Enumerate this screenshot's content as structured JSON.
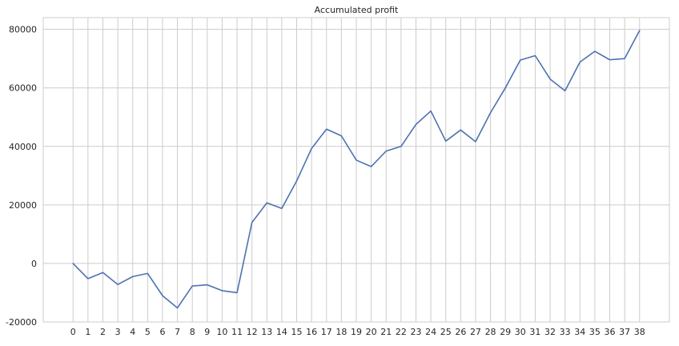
{
  "chart_data": {
    "type": "line",
    "title": "Accumulated profit",
    "xlabel": "",
    "ylabel": "",
    "x": [
      0,
      1,
      2,
      3,
      4,
      5,
      6,
      7,
      8,
      9,
      10,
      11,
      12,
      13,
      14,
      15,
      16,
      17,
      18,
      19,
      20,
      21,
      22,
      23,
      24,
      25,
      26,
      27,
      28,
      29,
      30,
      31,
      32,
      33,
      34,
      35,
      36,
      37,
      38
    ],
    "series": [
      {
        "name": "",
        "values": [
          0,
          -5200,
          -3100,
          -7200,
          -4500,
          -3400,
          -11000,
          -15200,
          -7700,
          -7300,
          -9300,
          -10000,
          14000,
          20700,
          18800,
          28200,
          39300,
          45900,
          43600,
          35300,
          33100,
          38400,
          40000,
          47500,
          52100,
          41800,
          45600,
          41600,
          51500,
          60000,
          69500,
          71000,
          63000,
          59000,
          68800,
          72500,
          69600,
          70000,
          79600
        ],
        "color": "#4c72b0"
      }
    ],
    "xlim": [
      -2.0,
      40.0
    ],
    "ylim": [
      -20000,
      84000
    ],
    "yticks": [
      -20000,
      0,
      20000,
      40000,
      60000,
      80000
    ],
    "grid": true,
    "legend": "none"
  }
}
